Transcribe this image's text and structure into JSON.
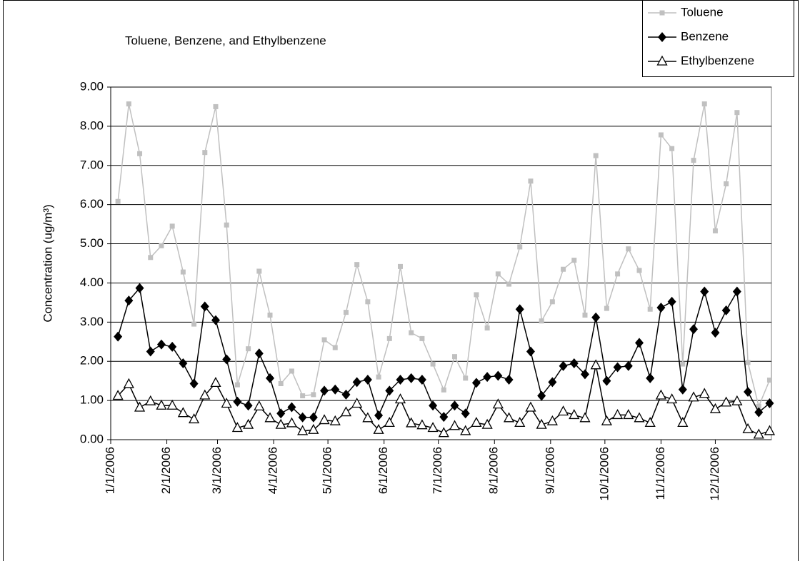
{
  "chart_data": {
    "type": "line",
    "title": "Toluene, Benzene, and Ethylbenzene",
    "y_label": "Concentration (ug/m³)",
    "x": [
      "1/5/2006",
      "1/11/2006",
      "1/17/2006",
      "1/23/2006",
      "1/29/2006",
      "2/4/2006",
      "2/10/2006",
      "2/16/2006",
      "2/22/2006",
      "2/28/2006",
      "3/6/2006",
      "3/12/2006",
      "3/18/2006",
      "3/24/2006",
      "3/30/2006",
      "4/5/2006",
      "4/11/2006",
      "4/17/2006",
      "4/23/2006",
      "4/29/2006",
      "5/5/2006",
      "5/11/2006",
      "5/17/2006",
      "5/23/2006",
      "5/29/2006",
      "6/4/2006",
      "6/10/2006",
      "6/16/2006",
      "6/22/2006",
      "6/28/2006",
      "7/4/2006",
      "7/10/2006",
      "7/16/2006",
      "7/22/2006",
      "7/28/2006",
      "8/3/2006",
      "8/9/2006",
      "8/15/2006",
      "8/21/2006",
      "8/27/2006",
      "9/2/2006",
      "9/8/2006",
      "9/14/2006",
      "9/20/2006",
      "9/26/2006",
      "10/2/2006",
      "10/8/2006",
      "10/14/2006",
      "10/20/2006",
      "10/26/2006",
      "11/1/2006",
      "11/7/2006",
      "11/13/2006",
      "11/19/2006",
      "11/25/2006",
      "12/1/2006",
      "12/7/2006",
      "12/13/2006",
      "12/19/2006",
      "12/25/2006",
      "12/31/2006"
    ],
    "series": [
      {
        "name": "Toluene",
        "color": "#c0c0c0",
        "marker": "square",
        "values": [
          6.08,
          8.57,
          7.3,
          4.65,
          4.95,
          5.45,
          4.28,
          2.95,
          7.33,
          8.5,
          5.48,
          1.4,
          2.32,
          4.3,
          3.18,
          1.43,
          1.75,
          1.12,
          1.15,
          2.55,
          2.35,
          3.25,
          4.47,
          3.52,
          1.6,
          2.58,
          4.42,
          2.73,
          2.58,
          1.93,
          1.27,
          2.12,
          1.57,
          3.7,
          2.85,
          4.23,
          3.97,
          4.92,
          6.6,
          3.03,
          3.52,
          4.35,
          4.58,
          3.18,
          7.25,
          3.35,
          4.23,
          4.87,
          4.32,
          3.33,
          7.78,
          7.43,
          1.93,
          7.13,
          8.57,
          5.33,
          6.53,
          8.35,
          1.97,
          0.85,
          1.52
        ]
      },
      {
        "name": "Benzene",
        "color": "#000000",
        "marker": "diamond",
        "values": [
          2.63,
          3.55,
          3.87,
          2.25,
          2.43,
          2.37,
          1.95,
          1.43,
          3.4,
          3.05,
          2.05,
          0.97,
          0.87,
          2.2,
          1.57,
          0.67,
          0.83,
          0.57,
          0.57,
          1.25,
          1.28,
          1.15,
          1.47,
          1.53,
          0.62,
          1.25,
          1.53,
          1.57,
          1.53,
          0.87,
          0.58,
          0.87,
          0.67,
          1.45,
          1.6,
          1.63,
          1.53,
          3.33,
          2.25,
          1.12,
          1.47,
          1.88,
          1.95,
          1.67,
          3.12,
          1.5,
          1.85,
          1.88,
          2.47,
          1.57,
          3.37,
          3.52,
          1.28,
          2.82,
          3.78,
          2.73,
          3.3,
          3.78,
          1.22,
          0.7,
          0.93
        ]
      },
      {
        "name": "Ethylbenzene",
        "color": "#000000",
        "marker": "triangle",
        "values": [
          1.12,
          1.42,
          0.82,
          0.98,
          0.87,
          0.87,
          0.68,
          0.52,
          1.13,
          1.45,
          0.92,
          0.3,
          0.38,
          0.85,
          0.55,
          0.38,
          0.42,
          0.22,
          0.25,
          0.5,
          0.47,
          0.7,
          0.92,
          0.55,
          0.25,
          0.43,
          1.03,
          0.42,
          0.37,
          0.3,
          0.17,
          0.35,
          0.22,
          0.43,
          0.38,
          0.9,
          0.55,
          0.43,
          0.82,
          0.38,
          0.47,
          0.72,
          0.63,
          0.55,
          1.9,
          0.47,
          0.63,
          0.63,
          0.55,
          0.43,
          1.13,
          1.03,
          0.43,
          1.08,
          1.17,
          0.78,
          0.95,
          0.98,
          0.27,
          0.13,
          0.22
        ]
      }
    ],
    "xlim": [
      "1/1/2006",
      "1/1/2007"
    ],
    "xticks": [
      "1/1/2006",
      "2/1/2006",
      "3/1/2006",
      "4/1/2006",
      "5/1/2006",
      "6/1/2006",
      "7/1/2006",
      "8/1/2006",
      "9/1/2006",
      "10/1/2006",
      "11/1/2006",
      "12/1/2006"
    ],
    "ylim": [
      0,
      9
    ],
    "yticks": [
      {
        "value": 0,
        "label": "0.00"
      },
      {
        "value": 1,
        "label": "1.00"
      },
      {
        "value": 2,
        "label": "2.00"
      },
      {
        "value": 3,
        "label": "3.00"
      },
      {
        "value": 4,
        "label": "4.00"
      },
      {
        "value": 5,
        "label": "5.00"
      },
      {
        "value": 6,
        "label": "6.00"
      },
      {
        "value": 7,
        "label": "7.00"
      },
      {
        "value": 8,
        "label": "8.00"
      },
      {
        "value": 9,
        "label": "9.00"
      }
    ],
    "grid": true,
    "legend": "top-right"
  }
}
